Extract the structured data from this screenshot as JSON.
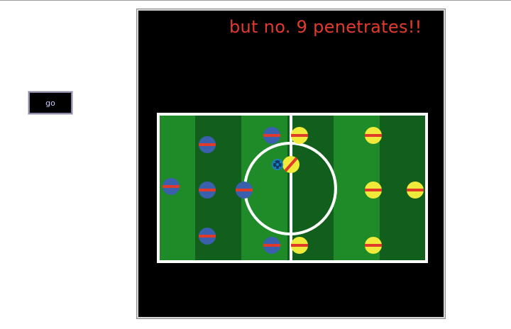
{
  "controls": {
    "go_label": "go"
  },
  "world": {
    "caption": "but no. 9 penetrates!!",
    "caption_color": "#e33a2e",
    "background_color": "#000000"
  },
  "pitch": {
    "stripe_colors": [
      "#1e8a28",
      "#125e1c"
    ],
    "line_color": "#ffffff"
  },
  "teams": {
    "blue": {
      "fill": "#3a5fad",
      "stripe": "#e03a2a"
    },
    "yellow": {
      "fill": "#f0ea3a",
      "stripe": "#e03a2a"
    }
  },
  "ball": {
    "icon": "soccer-ball-icon",
    "color": "#1f7fc0"
  }
}
